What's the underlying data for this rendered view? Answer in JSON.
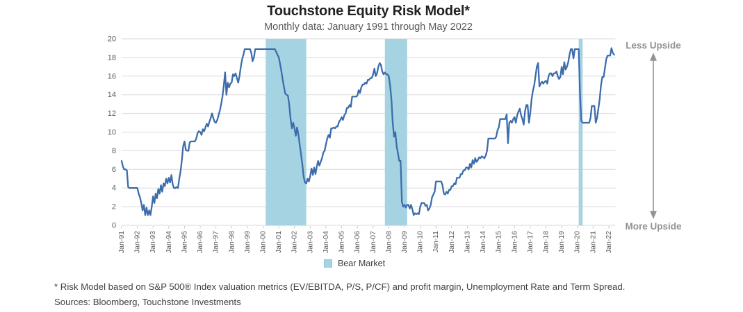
{
  "title": "Touchstone Equity Risk Model*",
  "subtitle": "Monthly data: January 1991 through May 2022",
  "legend": {
    "label": "Bear Market"
  },
  "annotations": {
    "top": "Less Upside",
    "bottom": "More Upside"
  },
  "footnote": "* Risk Model based on S&P 500® Index valuation metrics (EV/EBITDA, P/S, P/CF) and profit margin, Unemployment Rate and Term Spread.",
  "sources": "Sources:  Bloomberg, Touchstone Investments",
  "colors": {
    "line": "#3d6cac",
    "bear_band": "#a6d3e2",
    "grid": "#d9d9d9",
    "tick": "#c9c9c9",
    "axis_text": "#58595b",
    "annotation": "#919396",
    "title_text": "#231f20",
    "footnote_text": "#414042"
  },
  "chart_data": {
    "type": "line",
    "title": "Touchstone Equity Risk Model*",
    "subtitle": "Monthly data: January 1991 through May 2022",
    "x_start": "1991-01",
    "x_end": "2022-05",
    "x_frequency": "monthly",
    "x_tick_labels": [
      "Jan-91",
      "Jan-92",
      "Jan-93",
      "Jan-94",
      "Jan-95",
      "Jan-96",
      "Jan-97",
      "Jan-98",
      "Jan-99",
      "Jan-00",
      "Jan-01",
      "Jan-02",
      "Jan-03",
      "Jan-04",
      "Jan-05",
      "Jan-06",
      "Jan-07",
      "Jan-08",
      "Jan-09",
      "Jan-10",
      "Jan-11",
      "Jan-12",
      "Jan-13",
      "Jan-14",
      "Jan-15",
      "Jan-16",
      "Jan-17",
      "Jan-18",
      "Jan-19",
      "Jan-20",
      "Jan-21",
      "Jan-22"
    ],
    "y_ticks": [
      0,
      2,
      4,
      6,
      8,
      10,
      12,
      14,
      16,
      18,
      20
    ],
    "ylim": [
      0,
      20
    ],
    "grid": "horizontal",
    "legend_position": "bottom",
    "bear_markets": [
      {
        "from": "2000-03",
        "to": "2002-10"
      },
      {
        "from": "2007-10",
        "to": "2009-03"
      },
      {
        "from": "2020-02",
        "to": "2020-05"
      }
    ],
    "series": [
      {
        "name": "Equity Risk Model",
        "values": [
          6.9,
          6.3,
          6.0,
          6.0,
          5.9,
          4.1,
          4.0,
          4.0,
          4.0,
          4.0,
          4.0,
          4.0,
          4.0,
          3.4,
          3.0,
          2.4,
          1.6,
          2.2,
          1.1,
          1.9,
          1.1,
          1.6,
          1.1,
          2.0,
          3.1,
          2.4,
          3.4,
          2.9,
          3.9,
          3.4,
          4.3,
          3.6,
          4.5,
          4.2,
          5.0,
          4.5,
          5.1,
          4.6,
          5.4,
          4.4,
          4.0,
          4.0,
          4.1,
          4.0,
          5.0,
          5.8,
          7.0,
          8.5,
          9.0,
          8.1,
          8.0,
          8.0,
          8.9,
          9.0,
          9.0,
          9.0,
          9.0,
          9.3,
          9.9,
          10.1,
          10.0,
          9.7,
          10.3,
          10.1,
          10.5,
          10.9,
          10.6,
          11.1,
          11.5,
          12.0,
          11.5,
          11.1,
          11.0,
          11.3,
          11.8,
          12.3,
          13.0,
          13.8,
          15.0,
          16.4,
          14.0,
          15.3,
          14.8,
          15.2,
          15.3,
          16.2,
          16.0,
          16.3,
          15.8,
          15.3,
          16.0,
          17.0,
          17.8,
          18.3,
          18.9,
          18.9,
          18.9,
          18.9,
          18.9,
          18.5,
          17.6,
          18.0,
          18.9,
          18.9,
          18.9,
          18.9,
          18.9,
          18.9,
          18.9,
          18.9,
          18.9,
          18.9,
          18.9,
          18.9,
          18.9,
          18.9,
          18.9,
          18.9,
          18.6,
          18.3,
          18.0,
          17.3,
          16.5,
          15.6,
          14.8,
          14.1,
          14.0,
          13.9,
          12.9,
          11.4,
          10.4,
          11.0,
          10.4,
          9.6,
          10.5,
          9.7,
          8.6,
          7.6,
          6.5,
          5.2,
          4.6,
          4.5,
          5.0,
          4.7,
          5.3,
          6.1,
          5.4,
          6.2,
          5.5,
          6.3,
          6.9,
          6.4,
          6.8,
          7.2,
          7.8,
          8.0,
          8.7,
          9.3,
          9.7,
          9.4,
          10.4,
          10.4,
          10.5,
          10.4,
          10.6,
          10.6,
          11.1,
          11.3,
          11.6,
          11.3,
          11.8,
          12.0,
          12.6,
          12.6,
          12.9,
          12.7,
          13.8,
          13.8,
          13.8,
          13.8,
          13.9,
          14.5,
          14.2,
          14.8,
          15.1,
          15.1,
          15.3,
          15.2,
          15.6,
          15.6,
          15.8,
          15.8,
          16.2,
          16.8,
          16.0,
          16.3,
          17.0,
          17.4,
          17.2,
          16.5,
          16.2,
          16.4,
          16.2,
          16.2,
          16.0,
          15.0,
          13.5,
          11.0,
          9.5,
          10.0,
          8.5,
          7.7,
          6.9,
          6.9,
          2.5,
          2.0,
          2.2,
          1.9,
          2.2,
          2.2,
          1.8,
          2.2,
          1.7,
          1.1,
          1.3,
          1.2,
          1.3,
          1.2,
          2.0,
          2.4,
          2.4,
          2.4,
          2.1,
          2.2,
          1.6,
          1.8,
          2.2,
          3.0,
          3.3,
          3.6,
          4.7,
          4.7,
          4.7,
          4.7,
          4.7,
          4.3,
          3.4,
          3.3,
          3.6,
          3.4,
          3.8,
          3.8,
          4.2,
          4.2,
          4.5,
          4.4,
          5.1,
          5.1,
          5.1,
          5.5,
          5.5,
          5.9,
          5.9,
          6.2,
          6.2,
          6.0,
          6.6,
          6.2,
          7.0,
          6.6,
          7.2,
          6.8,
          7.0,
          7.3,
          7.2,
          7.4,
          7.3,
          7.2,
          7.5,
          8.0,
          9.3,
          9.3,
          9.3,
          9.3,
          9.3,
          9.3,
          9.5,
          10.2,
          10.5,
          11.4,
          11.4,
          11.4,
          11.4,
          11.4,
          11.9,
          8.8,
          11.0,
          11.2,
          11.0,
          11.4,
          11.6,
          11.0,
          11.8,
          12.2,
          12.5,
          11.8,
          11.4,
          10.8,
          12.2,
          12.9,
          12.9,
          11.0,
          12.0,
          13.5,
          14.4,
          15.0,
          16.0,
          17.0,
          17.4,
          14.9,
          15.2,
          15.4,
          15.2,
          15.4,
          15.5,
          15.2,
          16.0,
          16.3,
          16.3,
          16.0,
          16.3,
          16.3,
          16.5,
          16.0,
          15.7,
          15.9,
          17.0,
          16.2,
          17.5,
          16.7,
          17.0,
          17.5,
          18.3,
          18.9,
          18.9,
          17.9,
          18.9,
          18.9,
          18.9,
          18.9,
          14.0,
          11.2,
          11.0,
          11.0,
          11.0,
          11.0,
          11.0,
          11.0,
          11.5,
          12.8,
          12.8,
          12.8,
          11.0,
          11.5,
          12.5,
          13.5,
          15.0,
          15.9,
          15.9,
          16.8,
          17.8,
          18.2,
          18.2,
          18.2,
          19.0,
          18.5,
          18.3
        ]
      }
    ]
  }
}
